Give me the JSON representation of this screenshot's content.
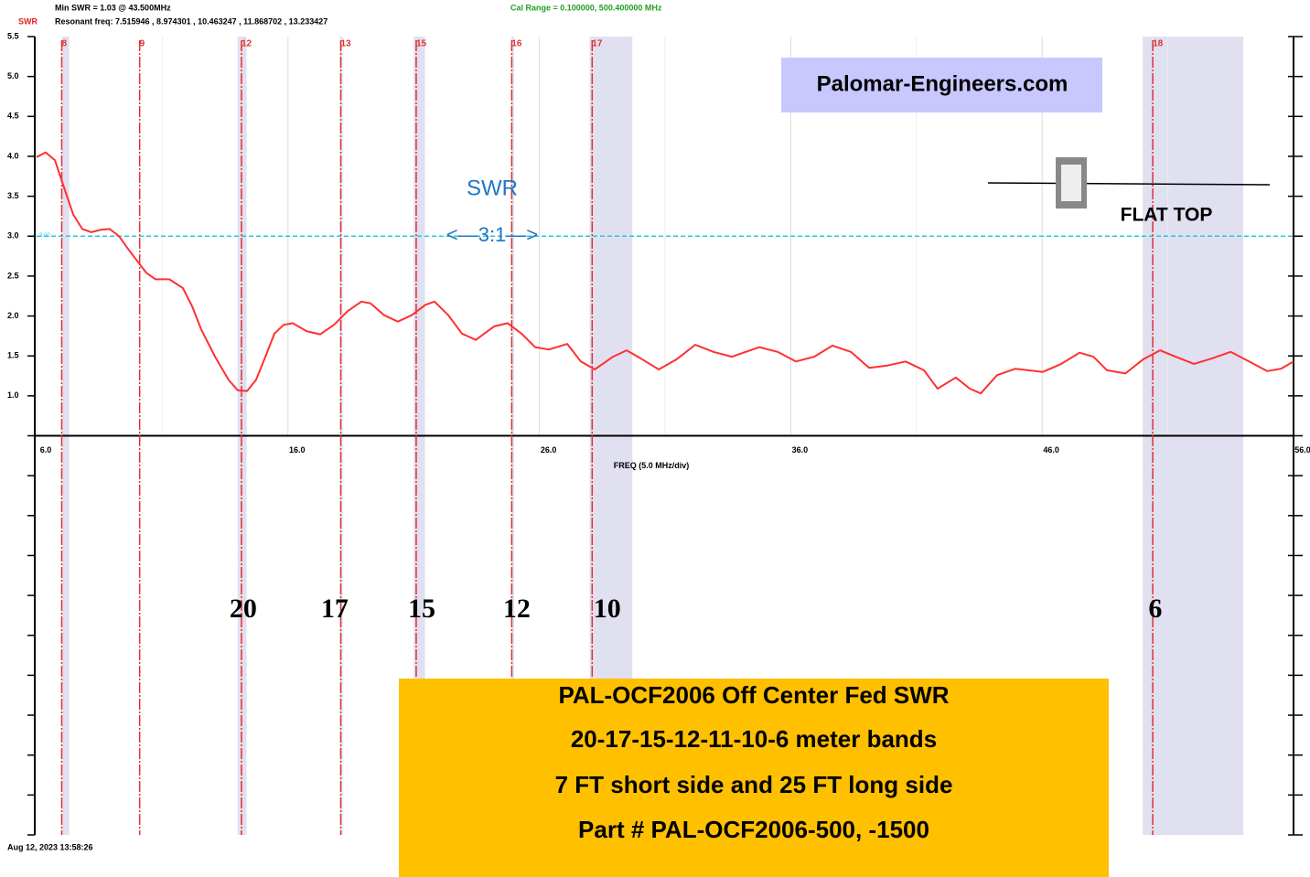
{
  "chart_data": {
    "type": "line",
    "min_swr_text": "Min SWR =  1.03 @  43.500MHz",
    "resonant_text": "Resonant freq:  7.515946 , 8.974301 , 10.463247 , 11.868702 , 13.233427",
    "cal_range_text": "Cal Range = 0.100000,  500.400000 MHz",
    "timestamp": "Aug 12, 2023  13:58:26",
    "xlabel": "FREQ (5.0 MHz/div)",
    "x": [
      6.0,
      6.36,
      6.73,
      7.09,
      7.46,
      7.82,
      8.18,
      8.55,
      8.91,
      9.28,
      9.64,
      10.0,
      10.37,
      10.73,
      11.28,
      11.82,
      12.19,
      12.55,
      13.1,
      13.64,
      14.0,
      14.37,
      14.73,
      15.1,
      15.46,
      15.83,
      16.19,
      16.74,
      17.28,
      17.83,
      18.37,
      18.92,
      19.28,
      19.83,
      20.37,
      20.92,
      21.47,
      21.83,
      22.38,
      22.92,
      23.47,
      24.2,
      24.74,
      25.29,
      25.83,
      26.38,
      27.11,
      27.65,
      28.2,
      28.93,
      29.47,
      30.02,
      30.75,
      31.47,
      32.2,
      32.93,
      33.66,
      34.75,
      35.48,
      36.2,
      36.93,
      37.66,
      38.39,
      39.12,
      39.84,
      40.57,
      41.3,
      41.84,
      42.57,
      43.12,
      43.56,
      44.21,
      44.94,
      46.03,
      46.76,
      47.49,
      48.04,
      48.58,
      49.31,
      50.03,
      50.69,
      51.31,
      52.04,
      52.77,
      53.5,
      54.23,
      54.95,
      55.5,
      56.0
    ],
    "series": [
      {
        "name": "SWR",
        "color": "#ff3030",
        "values": [
          3.99,
          4.05,
          3.95,
          3.61,
          3.27,
          3.09,
          3.05,
          3.08,
          3.09,
          3.0,
          2.84,
          2.69,
          2.54,
          2.46,
          2.46,
          2.35,
          2.12,
          1.83,
          1.49,
          1.2,
          1.07,
          1.06,
          1.2,
          1.49,
          1.78,
          1.89,
          1.91,
          1.81,
          1.77,
          1.89,
          2.06,
          2.18,
          2.16,
          2.01,
          1.93,
          2.01,
          2.14,
          2.18,
          2.01,
          1.78,
          1.7,
          1.87,
          1.91,
          1.78,
          1.61,
          1.58,
          1.65,
          1.43,
          1.33,
          1.49,
          1.57,
          1.47,
          1.33,
          1.46,
          1.64,
          1.55,
          1.49,
          1.61,
          1.55,
          1.43,
          1.49,
          1.63,
          1.55,
          1.35,
          1.38,
          1.43,
          1.32,
          1.09,
          1.23,
          1.09,
          1.03,
          1.26,
          1.34,
          1.3,
          1.4,
          1.54,
          1.49,
          1.32,
          1.28,
          1.46,
          1.57,
          1.49,
          1.4,
          1.47,
          1.55,
          1.43,
          1.31,
          1.34,
          1.43
        ]
      }
    ],
    "xlim": [
      6,
      56
    ],
    "ylim": [
      -4.5,
      5.5
    ],
    "xticks": [
      {
        "value": 6,
        "label": "6.0"
      },
      {
        "value": 16,
        "label": "16.0"
      },
      {
        "value": 26,
        "label": "26.0"
      },
      {
        "value": 36,
        "label": "36.0"
      },
      {
        "value": 46,
        "label": "46.0"
      },
      {
        "value": 56,
        "label": "56.0"
      }
    ],
    "x_minor_grid": [
      11,
      21,
      31,
      41,
      51
    ],
    "yticks": [
      {
        "value": 1,
        "label": "1.0"
      },
      1.5,
      {
        "value": 2,
        "label": "2.0"
      },
      2.5,
      {
        "value": 3,
        "label": "3.0"
      },
      3.5,
      {
        "value": 4,
        "label": "4.0"
      },
      4.5,
      {
        "value": 5,
        "label": "5.0"
      },
      5.5
    ],
    "y_unlabeled_ticks": [
      0.5,
      0,
      -0.5,
      -1,
      -1.5,
      -2,
      -2.5,
      -3,
      -3.5,
      -4,
      -4.5
    ],
    "reference_line": {
      "value": 3,
      "label": "3.00",
      "color": "#22c8e0"
    },
    "bands": [
      [
        7.0,
        7.3
      ],
      [
        14.0,
        14.35
      ],
      [
        18.068,
        18.168
      ],
      [
        21.0,
        21.45
      ],
      [
        24.89,
        24.99
      ],
      [
        28.0,
        29.7
      ],
      [
        50.0,
        54.0
      ]
    ],
    "band_color": "#e0e0f0",
    "markers": [
      {
        "label": "8",
        "x": 7.0
      },
      {
        "label": "9",
        "x": 10.1
      },
      {
        "label": "12",
        "x": 14.15
      },
      {
        "label": "13",
        "x": 18.1
      },
      {
        "label": "15",
        "x": 21.1
      },
      {
        "label": "16",
        "x": 24.9
      },
      {
        "label": "17",
        "x": 28.1
      },
      {
        "label": "18",
        "x": 50.4
      }
    ],
    "band_labels": [
      {
        "label": "20",
        "x": 14.22
      },
      {
        "label": "17",
        "x": 17.86
      },
      {
        "label": "15",
        "x": 21.32
      },
      {
        "label": "12",
        "x": 25.1
      },
      {
        "label": "10",
        "x": 28.7
      },
      {
        "label": "6",
        "x": 50.5
      }
    ],
    "annotations": {
      "swr": "SWR",
      "ratio": "<—3:1—>",
      "website": "Palomar-Engineers.com",
      "flat_top": "FLAT TOP",
      "box_lines": [
        "PAL-OCF2006 Off Center Fed  SWR",
        "20-17-15-12-11-10-6 meter bands",
        "7 FT short side and 25 FT long side",
        "Part # PAL-OCF2006-500, -1500"
      ]
    }
  }
}
